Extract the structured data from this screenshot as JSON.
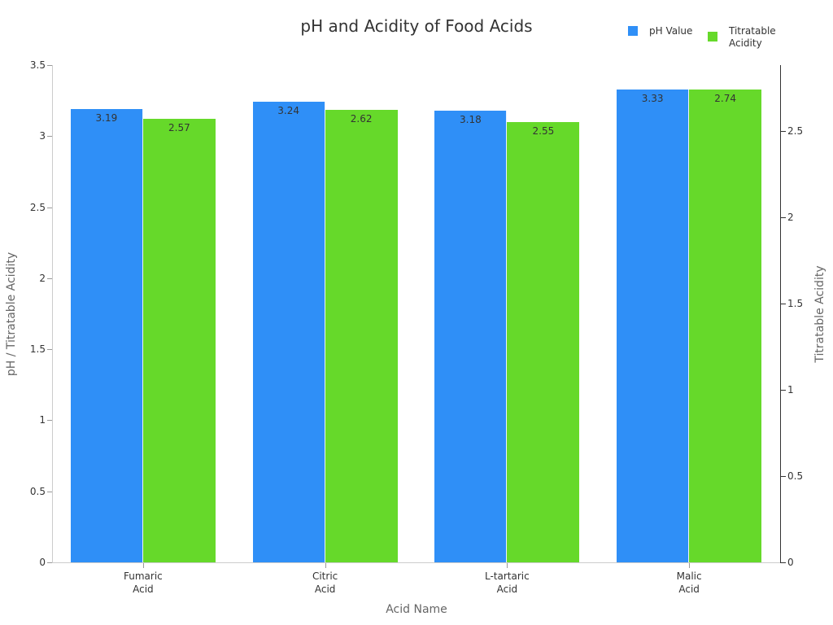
{
  "chart_data": {
    "type": "bar",
    "title": "pH and Acidity of Food Acids",
    "xlabel": "Acid Name",
    "ylabel": "pH / Titratable Acidity",
    "ylabel_right": "Titratable Acidity",
    "categories": [
      "Fumaric\nAcid",
      "Citric\nAcid",
      "L-tartaric\nAcid",
      "Malic\nAcid"
    ],
    "series": [
      {
        "name": "pH Value",
        "color": "#2f8ff7",
        "axis": "left",
        "values": [
          3.19,
          3.24,
          3.18,
          3.33
        ]
      },
      {
        "name": "Titratable\nAcidity",
        "color": "#66d92a",
        "axis": "right",
        "values": [
          2.57,
          2.62,
          2.55,
          2.74
        ]
      }
    ],
    "ylim": [
      0,
      3.5
    ],
    "ylim_right": [
      0,
      2.88
    ],
    "yticks_left": [
      "0",
      "0.5",
      "1",
      "1.5",
      "2",
      "2.5",
      "3",
      "3.5"
    ],
    "yticks_right": [
      "0",
      "0.5",
      "1",
      "1.5",
      "2",
      "2.5"
    ],
    "legend_position": "top-right",
    "grid": false
  }
}
